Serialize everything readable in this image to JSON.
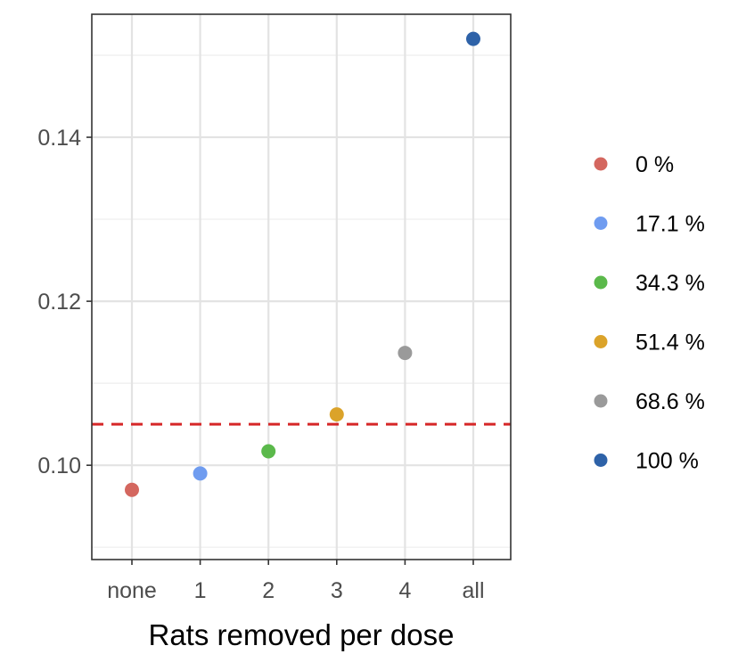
{
  "chart_data": {
    "type": "scatter",
    "title": "",
    "xlabel": "Rats removed per dose",
    "ylabel": "",
    "categories": [
      "none",
      "1",
      "2",
      "3",
      "4",
      "all"
    ],
    "yticks": [
      0.1,
      0.12,
      0.14
    ],
    "ytick_labels": [
      "0.10",
      "0.12",
      "0.14"
    ],
    "ylim": [
      0.0885,
      0.155
    ],
    "grid": true,
    "legend_position": "right",
    "reference_line": {
      "y": 0.105,
      "style": "dashed",
      "color": "#d62728"
    },
    "series": [
      {
        "name": "0 %",
        "category": "none",
        "value": 0.097,
        "color": "#d4675f"
      },
      {
        "name": "17.1 %",
        "category": "1",
        "value": 0.099,
        "color": "#6f9cf0"
      },
      {
        "name": "34.3 %",
        "category": "2",
        "value": 0.1017,
        "color": "#5bb94b"
      },
      {
        "name": "51.4 %",
        "category": "3",
        "value": 0.1062,
        "color": "#dba32a"
      },
      {
        "name": "68.6 %",
        "category": "4",
        "value": 0.1137,
        "color": "#9a9a9a"
      },
      {
        "name": "100 %",
        "category": "all",
        "value": 0.152,
        "color": "#2e62a8"
      }
    ]
  }
}
